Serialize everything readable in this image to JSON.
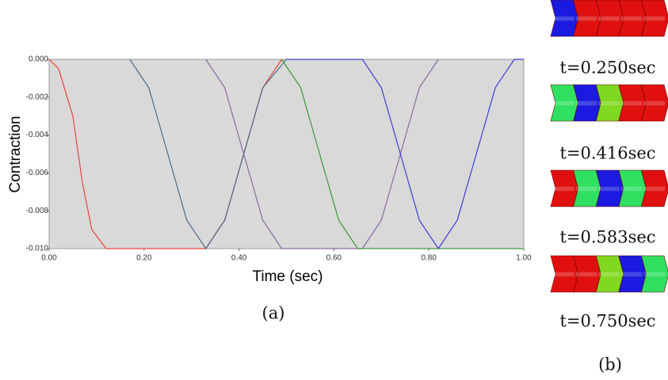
{
  "chart_data": {
    "type": "line",
    "xlabel": "Time (sec)",
    "ylabel": "Contraction",
    "caption": "(a)",
    "xlim": [
      0,
      1
    ],
    "ylim": [
      -0.01,
      0
    ],
    "background": "#d9d9d9",
    "xticks": [
      {
        "value": 0,
        "label": "0.00"
      },
      {
        "value": 0.2,
        "label": "0.20"
      },
      {
        "value": 0.4,
        "label": "0.40"
      },
      {
        "value": 0.6,
        "label": "0.60"
      },
      {
        "value": 0.8,
        "label": "0.80"
      },
      {
        "value": 1,
        "label": "1.00"
      }
    ],
    "yticks": [
      {
        "value": 0,
        "label": "0.000"
      },
      {
        "value": -0.002,
        "label": "-0.002"
      },
      {
        "value": -0.004,
        "label": "-0.004"
      },
      {
        "value": -0.006,
        "label": "-0.006"
      },
      {
        "value": -0.008,
        "label": "-0.008"
      },
      {
        "value": -0.01,
        "label": "-0.010"
      }
    ],
    "series": [
      {
        "color": "#e8443a",
        "x": [
          0,
          0.02,
          0.05,
          0.07,
          0.09,
          0.12,
          0.33,
          0.37,
          0.41,
          0.45,
          0.49
        ],
        "values": [
          0,
          -0.0005,
          -0.003,
          -0.0065,
          -0.009,
          -0.01,
          -0.01,
          -0.0085,
          -0.005,
          -0.0015,
          0
        ]
      },
      {
        "color": "#4d6b8a",
        "x": [
          0.17,
          0.21,
          0.25,
          0.29,
          0.33,
          0.37,
          0.41,
          0.45,
          0.5
        ],
        "values": [
          0,
          -0.0015,
          -0.005,
          -0.0085,
          -0.01,
          -0.0085,
          -0.005,
          -0.0015,
          0
        ]
      },
      {
        "color": "#8a6aa6",
        "x": [
          0.33,
          0.37,
          0.41,
          0.45,
          0.49,
          0.66,
          0.7,
          0.74,
          0.78,
          0.82
        ],
        "values": [
          0,
          -0.0015,
          -0.005,
          -0.0085,
          -0.01,
          -0.01,
          -0.0085,
          -0.005,
          -0.0015,
          0
        ]
      },
      {
        "color": "#3a9a3a",
        "x": [
          0.49,
          0.53,
          0.57,
          0.61,
          0.65,
          1
        ],
        "values": [
          0,
          -0.0015,
          -0.005,
          -0.0085,
          -0.01,
          -0.01
        ]
      },
      {
        "color": "#4040d0",
        "x": [
          0.5,
          0.66,
          0.7,
          0.74,
          0.78,
          0.82,
          0.86,
          0.9,
          0.94,
          0.98,
          1
        ],
        "values": [
          0,
          0,
          -0.0015,
          -0.005,
          -0.0085,
          -0.01,
          -0.0085,
          -0.005,
          -0.0015,
          0,
          0
        ]
      }
    ]
  },
  "panel_b": {
    "labels": [
      "t=0.250sec",
      "t=0.416sec",
      "t=0.583sec",
      "t=0.750sec"
    ],
    "caption": "(b)"
  }
}
